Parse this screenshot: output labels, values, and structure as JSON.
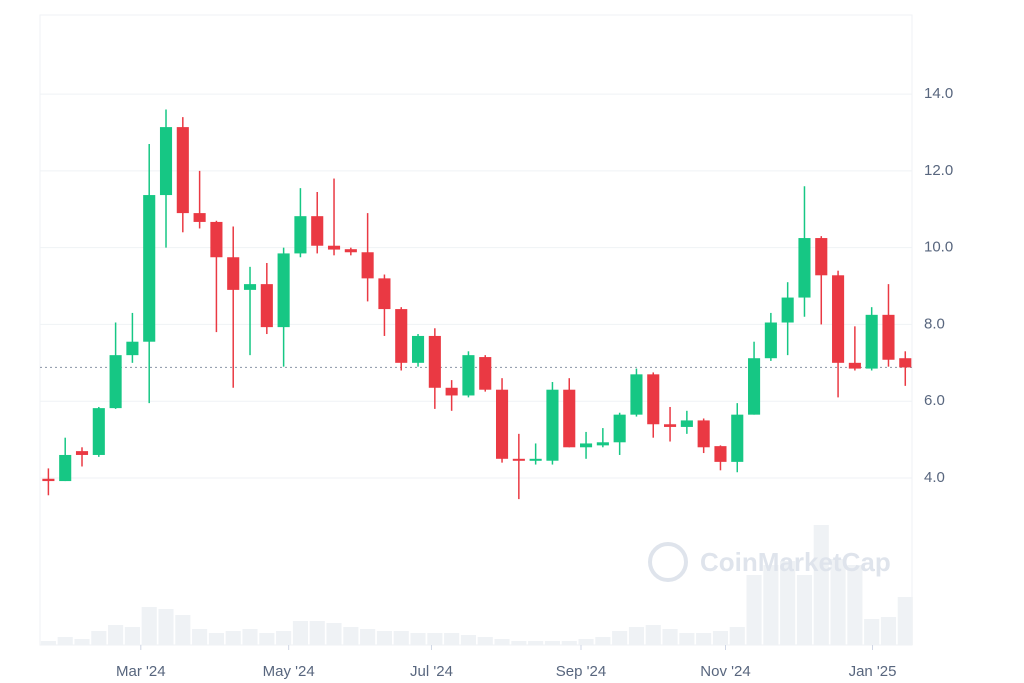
{
  "chart_data": {
    "type": "candlestick",
    "watermark": "CoinMarketCap",
    "up_color": "#16c784",
    "down_color": "#ea3943",
    "volume_color": "#eff2f5",
    "x": [
      0,
      1,
      2,
      3,
      4,
      5,
      6,
      7,
      8,
      9,
      10,
      11,
      12,
      13,
      14,
      15,
      16,
      17,
      18,
      19,
      20,
      21,
      22,
      23,
      24,
      25,
      26,
      27,
      28,
      29,
      30,
      31,
      32,
      33,
      34,
      35,
      36,
      37,
      38,
      39,
      40,
      41,
      42,
      43,
      44,
      45,
      46,
      47,
      48,
      49,
      50,
      51
    ],
    "open": [
      3.98,
      3.92,
      4.7,
      4.6,
      5.82,
      7.2,
      7.55,
      11.37,
      13.14,
      10.9,
      10.67,
      9.75,
      8.9,
      9.05,
      7.93,
      9.85,
      10.82,
      10.05,
      9.96,
      9.88,
      9.2,
      8.4,
      7.0,
      7.7,
      6.35,
      6.15,
      7.15,
      6.3,
      4.5,
      4.45,
      4.45,
      6.3,
      4.8,
      4.85,
      4.93,
      5.65,
      6.7,
      5.4,
      5.33,
      5.5,
      4.83,
      4.42,
      5.65,
      7.12,
      8.05,
      8.7,
      10.25,
      9.28,
      7.0,
      6.85,
      8.25,
      7.12
    ],
    "high": [
      4.25,
      5.05,
      4.8,
      5.85,
      8.05,
      8.3,
      12.7,
      13.6,
      13.4,
      12.0,
      10.7,
      10.55,
      9.5,
      9.6,
      10.0,
      11.55,
      11.45,
      11.8,
      10.0,
      10.9,
      9.3,
      8.45,
      7.75,
      7.9,
      6.55,
      7.3,
      7.2,
      6.6,
      5.15,
      4.9,
      6.5,
      6.6,
      5.2,
      5.3,
      5.7,
      6.85,
      6.75,
      5.85,
      5.75,
      5.55,
      4.85,
      5.95,
      7.55,
      8.3,
      9.1,
      11.6,
      10.3,
      9.4,
      7.95,
      8.45,
      9.05,
      7.3
    ],
    "low": [
      3.55,
      3.92,
      4.3,
      4.55,
      5.8,
      7.0,
      5.95,
      10.0,
      10.4,
      10.5,
      7.8,
      6.35,
      7.2,
      7.75,
      6.9,
      9.75,
      9.85,
      9.8,
      9.8,
      8.6,
      7.7,
      6.8,
      6.9,
      5.8,
      5.75,
      6.1,
      6.25,
      4.4,
      3.45,
      4.35,
      4.35,
      4.8,
      4.5,
      4.8,
      4.6,
      5.6,
      5.05,
      4.95,
      5.15,
      4.65,
      4.2,
      4.15,
      5.65,
      7.05,
      7.2,
      8.2,
      8.0,
      6.1,
      6.8,
      6.8,
      6.9,
      6.4
    ],
    "close": [
      3.92,
      4.6,
      4.6,
      5.82,
      7.2,
      7.55,
      11.37,
      13.14,
      10.9,
      10.67,
      9.75,
      8.9,
      9.05,
      7.93,
      9.85,
      10.82,
      10.05,
      9.95,
      9.88,
      9.2,
      8.4,
      7.0,
      7.7,
      6.35,
      6.15,
      7.2,
      6.3,
      4.5,
      4.45,
      4.5,
      6.3,
      4.8,
      4.9,
      4.93,
      5.65,
      6.7,
      5.4,
      5.33,
      5.5,
      4.8,
      4.42,
      5.65,
      7.12,
      8.05,
      8.7,
      10.25,
      9.28,
      7.0,
      6.85,
      8.25,
      7.08,
      6.88
    ],
    "volume": [
      4,
      8,
      6,
      14,
      20,
      18,
      38,
      36,
      30,
      16,
      12,
      14,
      16,
      12,
      14,
      24,
      24,
      22,
      18,
      16,
      14,
      14,
      12,
      12,
      12,
      10,
      8,
      6,
      4,
      4,
      4,
      4,
      6,
      8,
      14,
      18,
      20,
      16,
      12,
      12,
      14,
      18,
      70,
      80,
      84,
      70,
      120,
      86,
      80,
      26,
      28,
      48
    ],
    "last_price": 6.88,
    "xlim": [
      -0.5,
      51.4
    ],
    "ylim": [
      -0.35,
      16.06
    ],
    "xticks": [
      {
        "value": 5.5,
        "label": "Mar '24"
      },
      {
        "value": 14.3,
        "label": "May '24"
      },
      {
        "value": 22.8,
        "label": "Jul '24"
      },
      {
        "value": 31.7,
        "label": "Sep '24"
      },
      {
        "value": 40.3,
        "label": "Nov '24"
      },
      {
        "value": 49.05,
        "label": "Jan '25"
      }
    ],
    "yticks": [
      {
        "value": 4,
        "label": "4.0"
      },
      {
        "value": 6,
        "label": "6.0"
      },
      {
        "value": 8,
        "label": "8.0"
      },
      {
        "value": 10,
        "label": "10.0"
      },
      {
        "value": 12,
        "label": "12.0"
      },
      {
        "value": 14,
        "label": "14.0"
      }
    ],
    "grid": true
  }
}
